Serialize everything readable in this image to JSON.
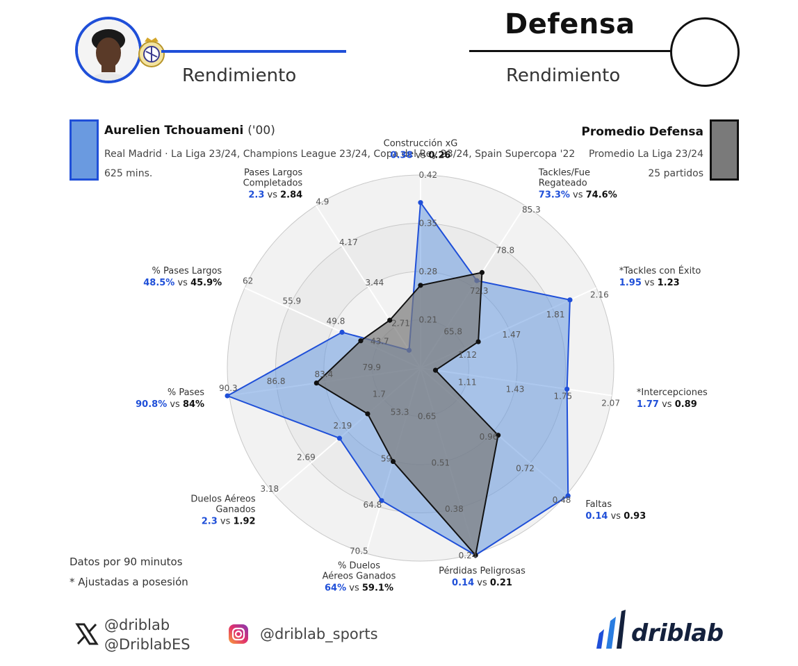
{
  "header": {
    "left_subtitle": "Rendimiento",
    "right_title": "Defensa",
    "right_subtitle": "Rendimiento"
  },
  "player": {
    "name": "Aurelien Tchouameni",
    "birth_year": "('00)",
    "competitions": "Real Madrid · La Liga 23/24, Champions League 23/24, Copa del Rey 23/24, Spain Supercopa '22",
    "minutes": "625 mins."
  },
  "comparison": {
    "name": "Promedio Defensa",
    "competitions": "Promedio La Liga 23/24",
    "matches": "25 partidos"
  },
  "colors": {
    "player": "#1f4fd8",
    "player_fill": "#6a9ae0",
    "average": "#111111",
    "average_fill": "#7a7a7a"
  },
  "chart_data": {
    "type": "radar",
    "series": [
      {
        "name": "Aurelien Tchouameni",
        "values": [
          0.38,
          73.3,
          1.95,
          1.77,
          0.14,
          0.14,
          64,
          2.3,
          90.8,
          48.5,
          2.3
        ]
      },
      {
        "name": "Promedio Defensa",
        "values": [
          0.26,
          74.6,
          1.23,
          0.89,
          0.93,
          0.21,
          59.1,
          1.92,
          84,
          45.9,
          2.84
        ]
      }
    ],
    "axes": [
      {
        "label": "Construcción xG",
        "player_text": "0.38",
        "avg_text": "0.26",
        "inverted": false,
        "ticks": [
          "0.21",
          "0.28",
          "0.35",
          "0.42"
        ]
      },
      {
        "label": "Tackles/Fue Regateado",
        "player_text": "73.3%",
        "avg_text": "74.6%",
        "inverted": false,
        "ticks": [
          "65.8",
          "72.3",
          "78.8",
          "85.3"
        ]
      },
      {
        "label": "*Tackles con Éxito",
        "player_text": "1.95",
        "avg_text": "1.23",
        "inverted": false,
        "ticks": [
          "1.12",
          "1.47",
          "1.81",
          "2.16"
        ]
      },
      {
        "label": "*Intercepciones",
        "player_text": "1.77",
        "avg_text": "0.89",
        "inverted": false,
        "ticks": [
          "1.11",
          "1.43",
          "1.75",
          "2.07"
        ]
      },
      {
        "label": "Faltas",
        "player_text": "0.14",
        "avg_text": "0.93",
        "inverted": true,
        "ticks": [
          "0.96",
          "0.72",
          "0.48"
        ]
      },
      {
        "label": "Pérdidas Peligrosas",
        "player_text": "0.14",
        "avg_text": "0.21",
        "inverted": true,
        "ticks": [
          "0.65",
          "0.51",
          "0.38",
          "0.24"
        ]
      },
      {
        "label": "% Duelos Aéreos Ganados",
        "player_text": "64%",
        "avg_text": "59.1%",
        "inverted": false,
        "ticks": [
          "53.3",
          "59",
          "64.8",
          "70.5"
        ]
      },
      {
        "label": "Duelos Aéreos Ganados",
        "player_text": "2.3",
        "avg_text": "1.92",
        "inverted": false,
        "ticks": [
          "1.7",
          "2.19",
          "2.69",
          "3.18"
        ]
      },
      {
        "label": "% Pases",
        "player_text": "90.8%",
        "avg_text": "84%",
        "inverted": false,
        "ticks": [
          "79.9",
          "83.4",
          "86.8",
          "90.3"
        ]
      },
      {
        "label": "% Pases Largos",
        "player_text": "48.5%",
        "avg_text": "45.9%",
        "inverted": false,
        "ticks": [
          "43.7",
          "49.8",
          "55.9",
          "62"
        ]
      },
      {
        "label": "Pases Largos Completados",
        "player_text": "2.3",
        "avg_text": "2.84",
        "inverted": false,
        "ticks": [
          "2.71",
          "3.44",
          "4.17",
          "4.9"
        ]
      }
    ],
    "legend": "top",
    "vs_word": "vs"
  },
  "footer": {
    "note_1": "Datos por 90 minutos",
    "note_2": "* Ajustadas a posesión",
    "x_handle_1": "@driblab",
    "x_handle_2": "@DriblabES",
    "instagram_handle": "@driblab_sports",
    "logo_text": "driblab"
  }
}
